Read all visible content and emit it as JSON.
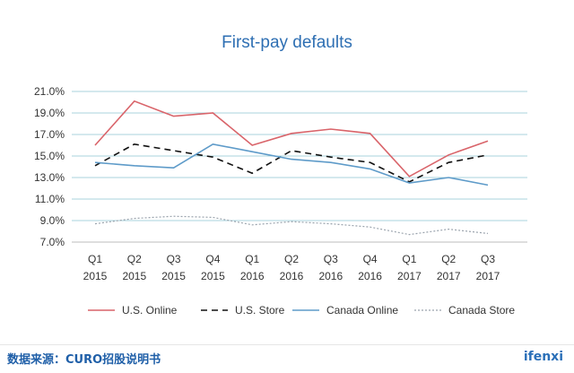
{
  "chart_data": {
    "type": "line",
    "title": "First-pay defaults",
    "xlabel": "",
    "ylabel": "",
    "ylim": [
      7.0,
      21.0
    ],
    "yticks": [
      "21.0%",
      "19.0%",
      "17.0%",
      "15.0%",
      "13.0%",
      "11.0%",
      "9.0%",
      "7.0%"
    ],
    "ytick_values": [
      21,
      19,
      17,
      15,
      13,
      11,
      9,
      7
    ],
    "categories": [
      [
        "Q1",
        "2015"
      ],
      [
        "Q2",
        "2015"
      ],
      [
        "Q3",
        "2015"
      ],
      [
        "Q4",
        "2015"
      ],
      [
        "Q1",
        "2016"
      ],
      [
        "Q2",
        "2016"
      ],
      [
        "Q3",
        "2016"
      ],
      [
        "Q4",
        "2016"
      ],
      [
        "Q1",
        "2017"
      ],
      [
        "Q2",
        "2017"
      ],
      [
        "Q3",
        "2017"
      ]
    ],
    "grid": true,
    "legend_position": "bottom",
    "series": [
      {
        "name": "U.S. Online",
        "color": "#d9646a",
        "style": "solid",
        "values": [
          16.0,
          20.1,
          18.7,
          19.0,
          16.0,
          17.1,
          17.5,
          17.1,
          13.1,
          15.1,
          16.4
        ]
      },
      {
        "name": "U.S. Store",
        "color": "#111111",
        "style": "dashed",
        "values": [
          14.1,
          16.1,
          15.5,
          14.9,
          13.4,
          15.5,
          14.9,
          14.4,
          12.6,
          14.4,
          15.1
        ]
      },
      {
        "name": "Canada Online",
        "color": "#5e9bc9",
        "style": "solid",
        "values": [
          14.4,
          14.1,
          13.9,
          16.1,
          15.4,
          14.7,
          14.4,
          13.8,
          12.5,
          13.0,
          12.3
        ]
      },
      {
        "name": "Canada Store",
        "color": "#9aa3ad",
        "style": "dotted",
        "values": [
          8.7,
          9.2,
          9.4,
          9.3,
          8.6,
          8.9,
          8.7,
          8.4,
          7.7,
          8.2,
          7.8
        ]
      }
    ]
  },
  "footer": {
    "source": "数据来源：CURO招股说明书",
    "brand": "ifenxi"
  }
}
